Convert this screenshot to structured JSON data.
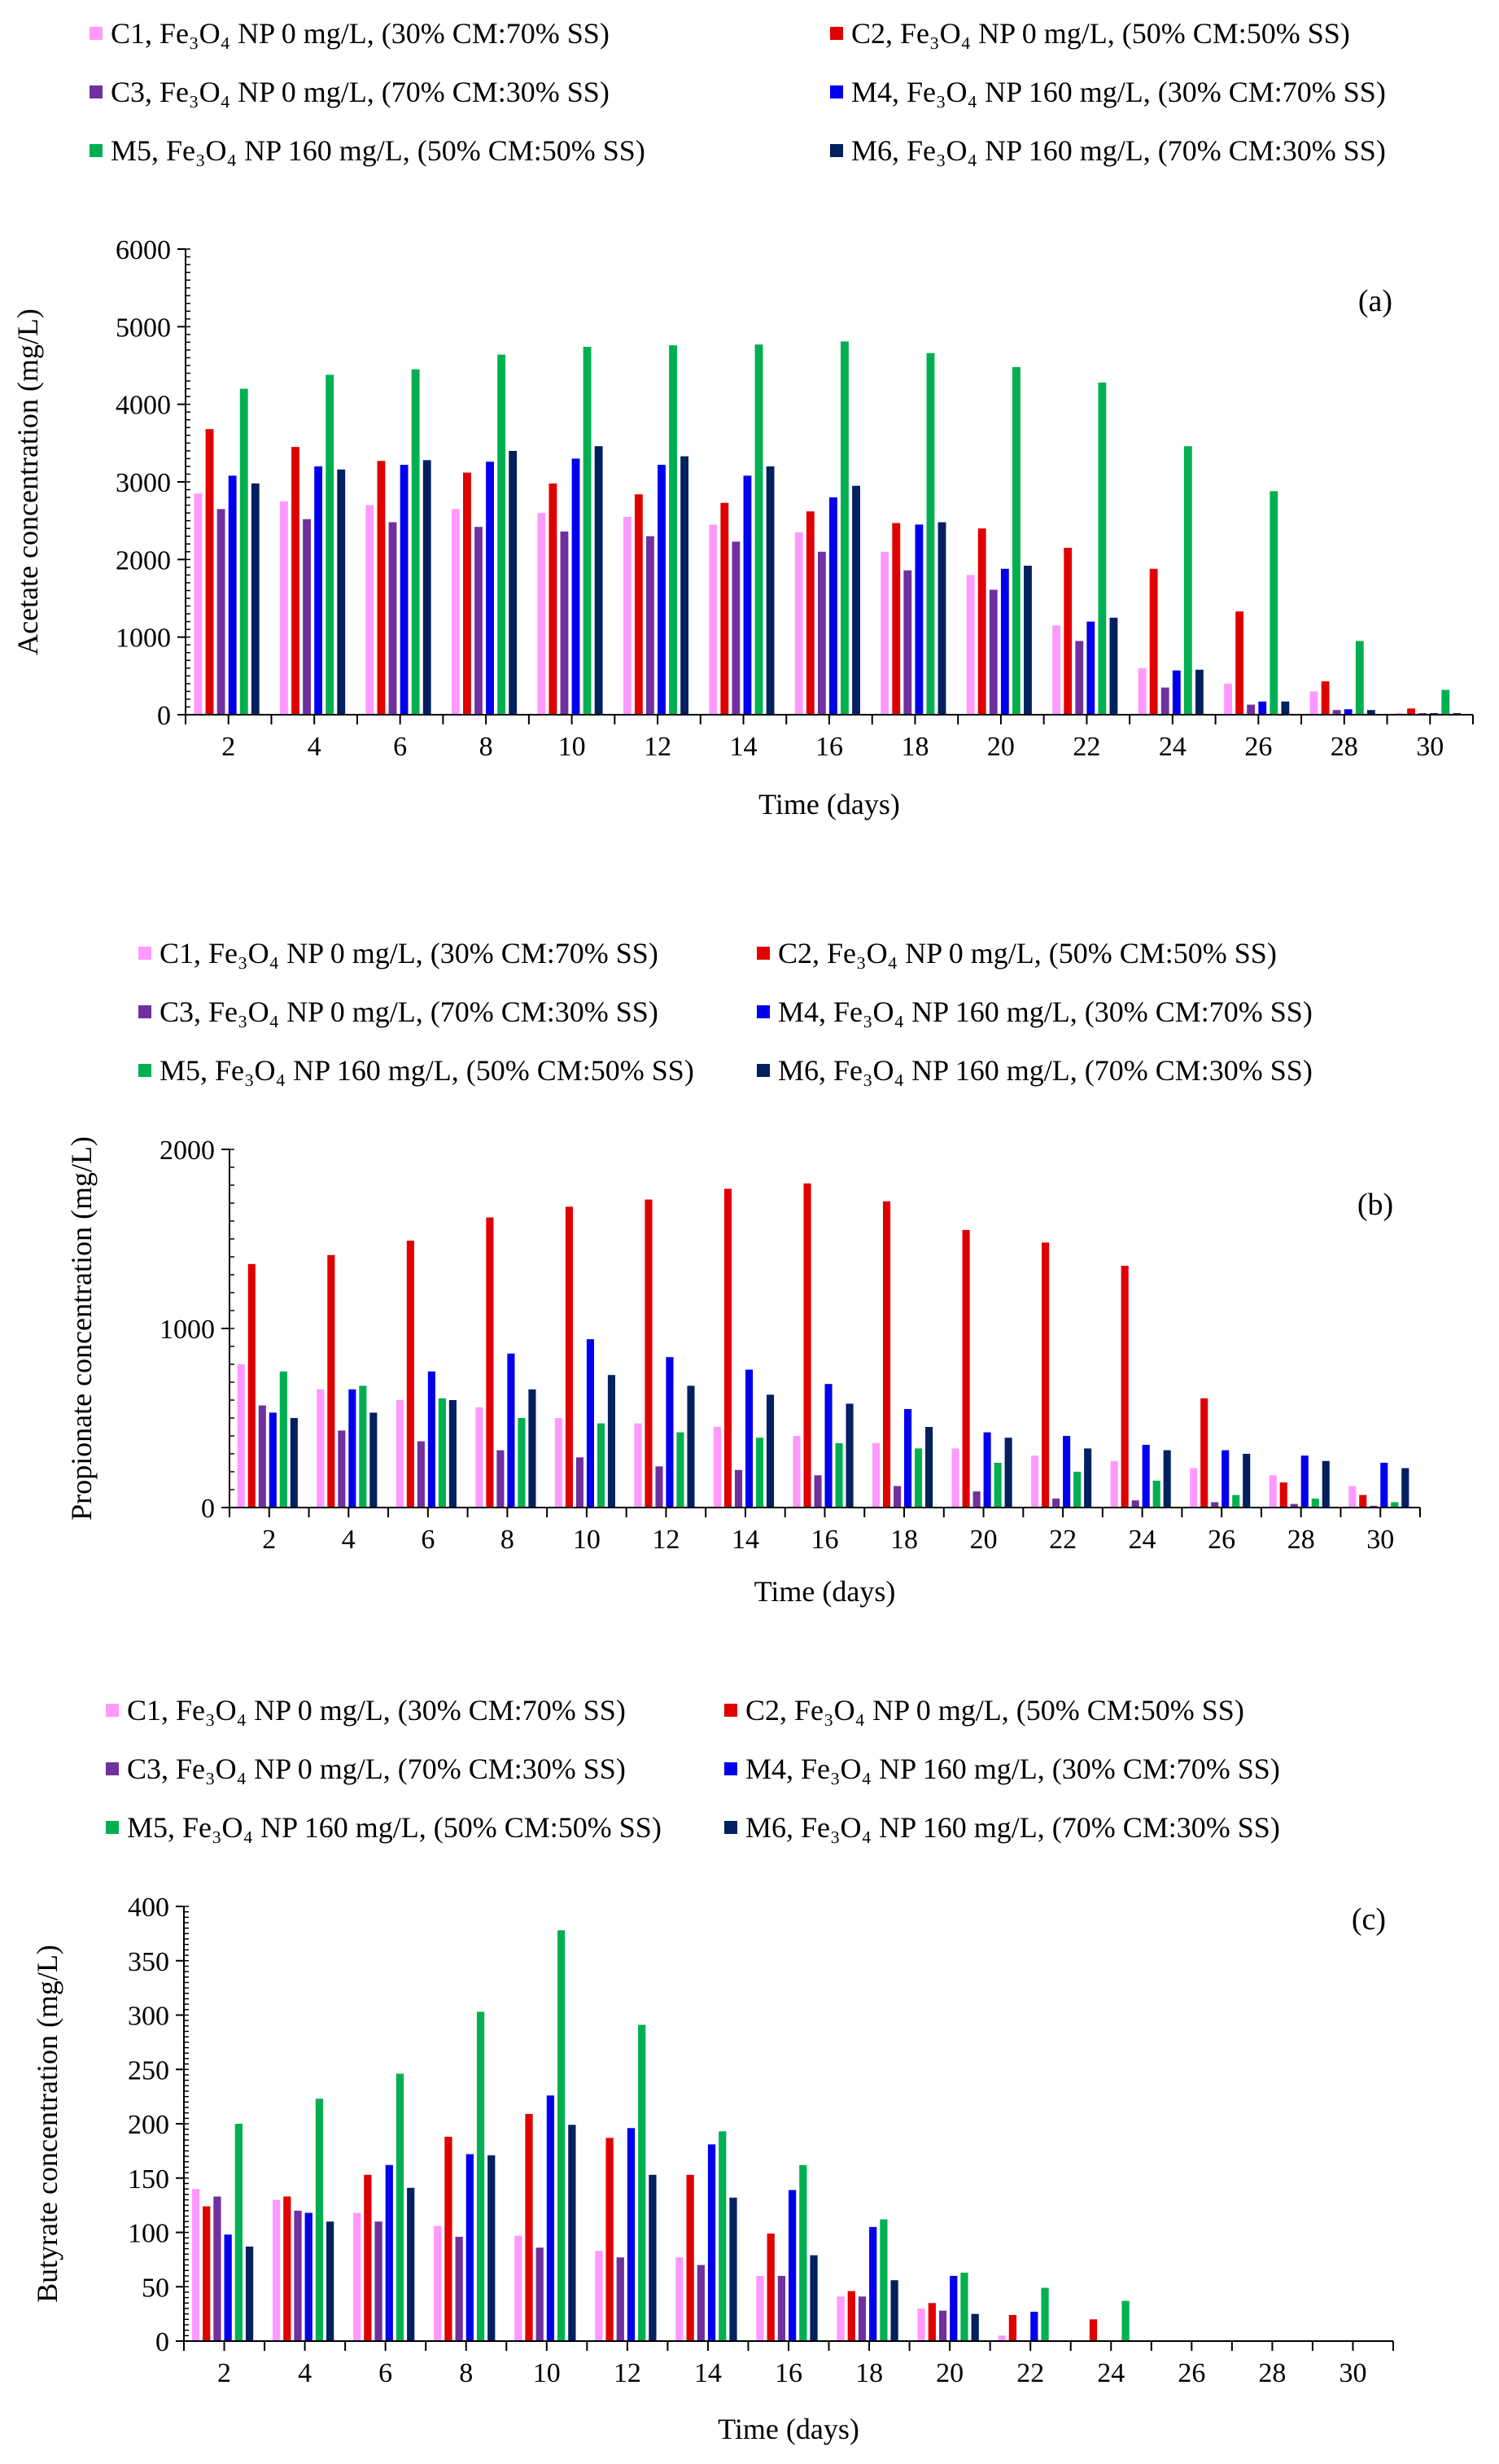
{
  "chart_data": [
    {
      "type": "bar",
      "panel_label": "(a)",
      "xlabel": "Time (days)",
      "ylabel": "Acetate concentration (mg/L)",
      "ylim": [
        0,
        6000
      ],
      "yticks": [
        0,
        1000,
        2000,
        3000,
        4000,
        5000,
        6000
      ],
      "categories": [
        2,
        4,
        6,
        8,
        10,
        12,
        14,
        16,
        18,
        20,
        22,
        24,
        26,
        28,
        30
      ],
      "legend_position": "top",
      "series": [
        {
          "name": "C1, Fe₃O₄ NP 0 mg/L, (30% CM:70% SS)",
          "color": "#ff99ff",
          "values": [
            2850,
            2750,
            2700,
            2650,
            2600,
            2550,
            2450,
            2350,
            2100,
            1800,
            1150,
            600,
            400,
            300,
            20
          ]
        },
        {
          "name": "C2, Fe₃O₄ NP 0 mg/L, (50% CM:50% SS)",
          "color": "#e00000",
          "values": [
            3680,
            3450,
            3270,
            3120,
            2980,
            2840,
            2730,
            2620,
            2470,
            2400,
            2150,
            1880,
            1330,
            430,
            80
          ]
        },
        {
          "name": "C3, Fe₃O₄ NP 0 mg/L, (70% CM:30% SS)",
          "color": "#7030a0",
          "values": [
            2650,
            2520,
            2480,
            2420,
            2360,
            2300,
            2230,
            2100,
            1860,
            1610,
            950,
            350,
            130,
            60,
            20
          ]
        },
        {
          "name": "M4, Fe₃O₄ NP 160 mg/L, (30% CM:70% SS)",
          "color": "#0000ee",
          "values": [
            3080,
            3200,
            3220,
            3260,
            3300,
            3220,
            3080,
            2800,
            2450,
            1880,
            1200,
            570,
            170,
            70,
            20
          ]
        },
        {
          "name": "M5, Fe₃O₄ NP 160 mg/L, (50% CM:50% SS)",
          "color": "#00b050",
          "values": [
            4200,
            4380,
            4450,
            4640,
            4740,
            4760,
            4770,
            4810,
            4660,
            4480,
            4280,
            3460,
            2880,
            950,
            320
          ]
        },
        {
          "name": "M6, Fe₃O₄ NP 160 mg/L, (70% CM:30% SS)",
          "color": "#002060",
          "values": [
            2980,
            3160,
            3280,
            3400,
            3460,
            3330,
            3200,
            2950,
            2480,
            1920,
            1250,
            580,
            170,
            60,
            20
          ]
        }
      ]
    },
    {
      "type": "bar",
      "panel_label": "(b)",
      "xlabel": "Time (days)",
      "ylabel": "Propionate concentration (mg/L)",
      "ylim": [
        0,
        2000
      ],
      "yticks": [
        0,
        1000,
        2000
      ],
      "categories": [
        2,
        4,
        6,
        8,
        10,
        12,
        14,
        16,
        18,
        20,
        22,
        24,
        26,
        28,
        30
      ],
      "legend_position": "top",
      "series": [
        {
          "name": "C1, Fe₃O₄ NP 0 mg/L, (30% CM:70% SS)",
          "color": "#ff99ff",
          "values": [
            800,
            660,
            600,
            560,
            500,
            470,
            450,
            400,
            360,
            330,
            290,
            260,
            220,
            180,
            120
          ]
        },
        {
          "name": "C2, Fe₃O₄ NP 0 mg/L, (50% CM:50% SS)",
          "color": "#e00000",
          "values": [
            1360,
            1410,
            1490,
            1620,
            1680,
            1720,
            1780,
            1810,
            1710,
            1550,
            1480,
            1350,
            610,
            140,
            70
          ]
        },
        {
          "name": "C3, Fe₃O₄ NP 0 mg/L, (70% CM:30% SS)",
          "color": "#7030a0",
          "values": [
            570,
            430,
            370,
            320,
            280,
            230,
            210,
            180,
            120,
            90,
            50,
            40,
            30,
            20,
            10
          ]
        },
        {
          "name": "M4, Fe₃O₄ NP 160 mg/L, (30% CM:70% SS)",
          "color": "#0000ee",
          "values": [
            530,
            660,
            760,
            860,
            940,
            840,
            770,
            690,
            550,
            420,
            400,
            350,
            320,
            290,
            250
          ]
        },
        {
          "name": "M5, Fe₃O₄ NP 160 mg/L, (50% CM:50% SS)",
          "color": "#00b050",
          "values": [
            760,
            680,
            610,
            500,
            470,
            420,
            390,
            360,
            330,
            250,
            200,
            150,
            70,
            50,
            30
          ]
        },
        {
          "name": "M6, Fe₃O₄ NP 160 mg/L, (70% CM:30% SS)",
          "color": "#002060",
          "values": [
            500,
            530,
            600,
            660,
            740,
            680,
            630,
            580,
            450,
            390,
            330,
            320,
            300,
            260,
            220
          ]
        }
      ]
    },
    {
      "type": "bar",
      "panel_label": "(c)",
      "xlabel": "Time (days)",
      "ylabel": "Butyrate concentration (mg/L)",
      "ylim": [
        0,
        400
      ],
      "yticks": [
        0,
        50,
        100,
        150,
        200,
        250,
        300,
        350,
        400
      ],
      "categories": [
        2,
        4,
        6,
        8,
        10,
        12,
        14,
        16,
        18,
        20,
        22,
        24,
        26,
        28,
        30
      ],
      "legend_position": "top",
      "series": [
        {
          "name": "C1, Fe₃O₄ NP 0 mg/L, (30% CM:70% SS)",
          "color": "#ff99ff",
          "values": [
            140,
            130,
            118,
            106,
            97,
            83,
            77,
            60,
            41,
            30,
            5,
            0,
            0,
            0,
            0
          ]
        },
        {
          "name": "C2, Fe₃O₄ NP 0 mg/L, (50% CM:50% SS)",
          "color": "#e00000",
          "values": [
            124,
            133,
            153,
            188,
            209,
            187,
            153,
            99,
            46,
            35,
            24,
            20,
            0,
            0,
            0
          ]
        },
        {
          "name": "C3, Fe₃O₄ NP 0 mg/L, (70% CM:30% SS)",
          "color": "#7030a0",
          "values": [
            133,
            120,
            110,
            96,
            86,
            77,
            70,
            60,
            41,
            28,
            0,
            0,
            0,
            0,
            0
          ]
        },
        {
          "name": "M4, Fe₃O₄ NP 160 mg/L, (30% CM:70% SS)",
          "color": "#0000ee",
          "values": [
            98,
            118,
            162,
            172,
            226,
            196,
            181,
            139,
            105,
            60,
            27,
            0,
            0,
            0,
            0
          ]
        },
        {
          "name": "M5, Fe₃O₄ NP 160 mg/L, (50% CM:50% SS)",
          "color": "#00b050",
          "values": [
            200,
            223,
            246,
            303,
            378,
            291,
            193,
            162,
            112,
            63,
            49,
            37,
            0,
            0,
            0
          ]
        },
        {
          "name": "M6, Fe₃O₄ NP 160 mg/L, (70% CM:30% SS)",
          "color": "#002060",
          "values": [
            87,
            110,
            141,
            171,
            199,
            153,
            132,
            79,
            56,
            25,
            0,
            0,
            0,
            0,
            0
          ]
        }
      ]
    }
  ]
}
